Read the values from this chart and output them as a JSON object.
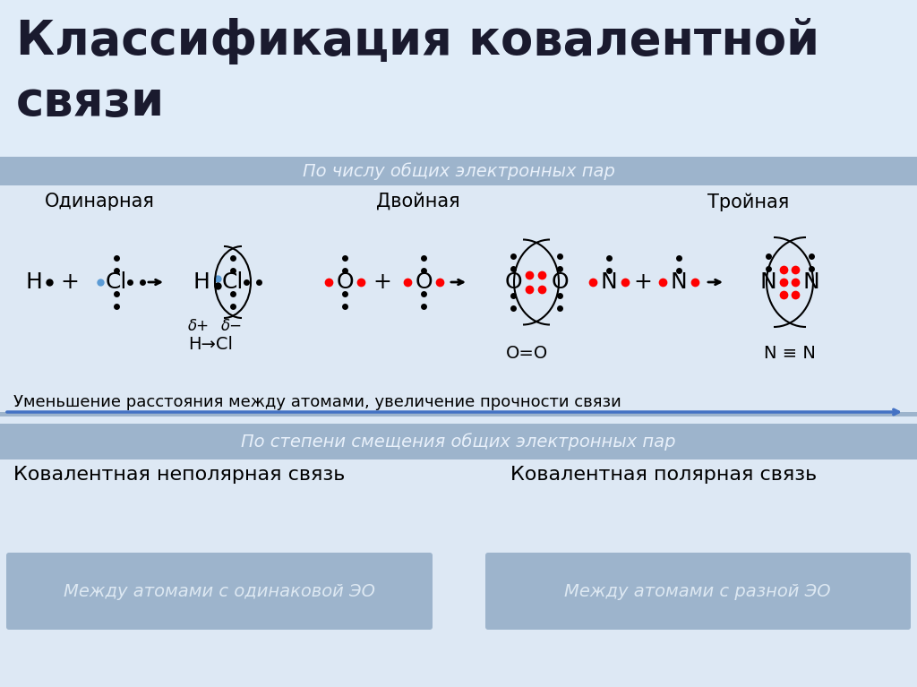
{
  "title_line1": "Классификация ковалентной",
  "title_line2": "связи",
  "bg_gradient_top": "#e8f0fa",
  "bg_gradient_bot": "#b8cce4",
  "bg_mid": "#dce8f5",
  "header_bg": "#9db4cc",
  "header_text": "#e8f0fa",
  "section_bg": "#dde8f2",
  "header1": "По числу общих электронных пар",
  "header2": "По степени смещения общих электронных пар",
  "label1": "Одинарная",
  "label2": "Двойная",
  "label3": "Тройная",
  "arrow_text": "Уменьшение расстояния между атомами, увеличение прочности связи",
  "nonpolar_label": "Ковалентная неполярная связь",
  "polar_label": "Ковалентная полярная связь",
  "box1_text": "Между атомами с одинаковой ЭО",
  "box2_text": "Между атомами с разной ЭО",
  "box_bg": "#9db4cc",
  "box_text_color": "#dde8f2"
}
